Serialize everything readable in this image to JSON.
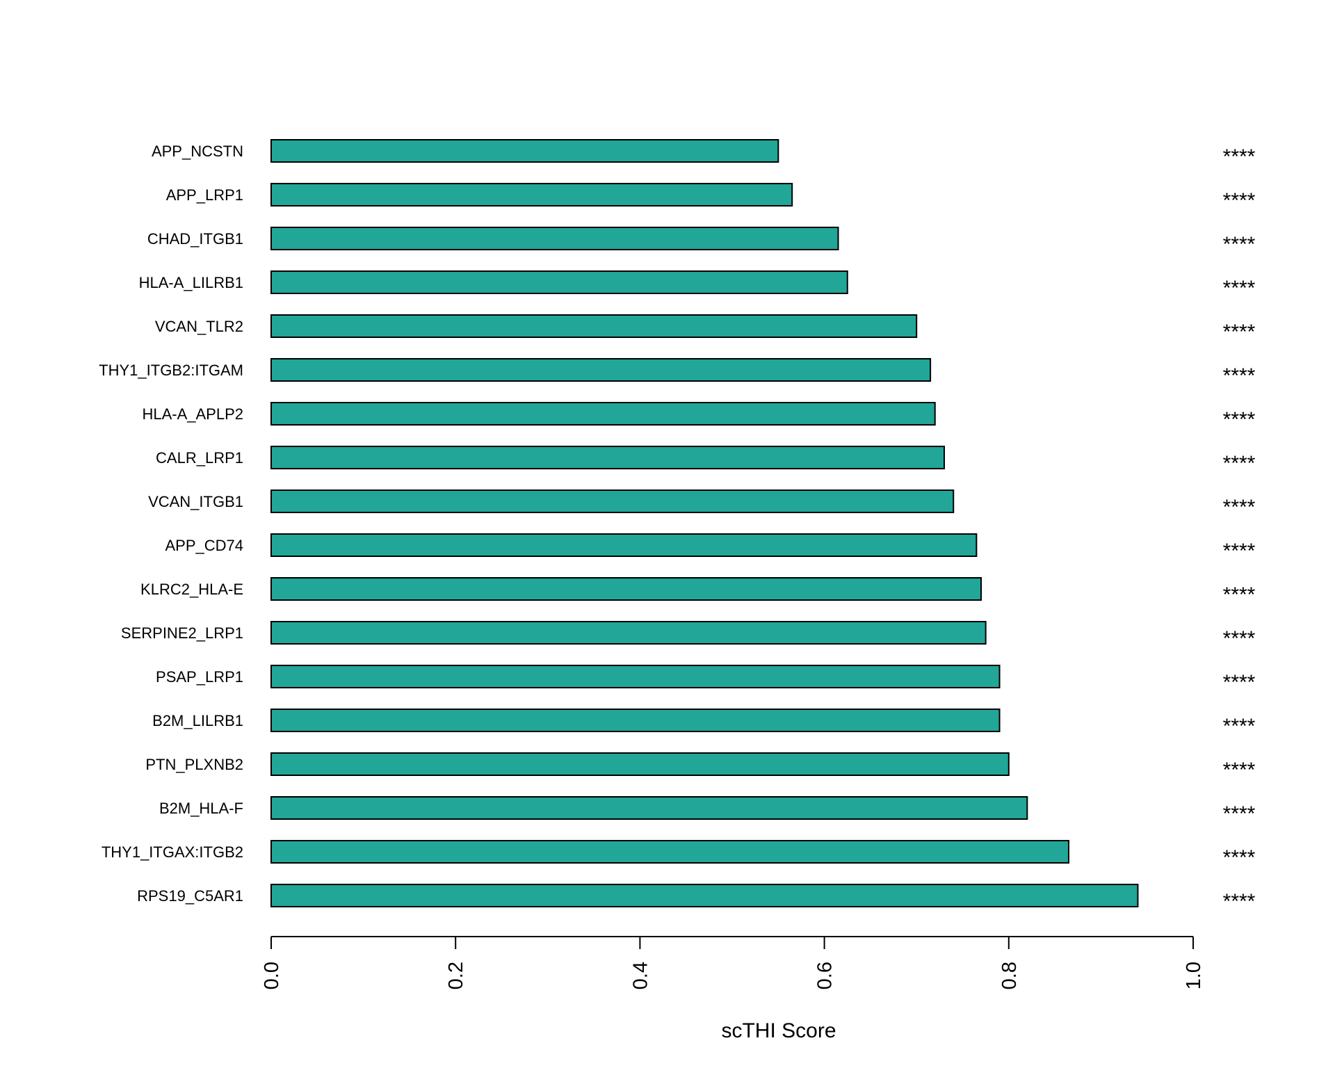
{
  "chart_data": {
    "type": "bar",
    "orientation": "horizontal",
    "title": "",
    "xlabel": "scTHI Score",
    "ylabel": "",
    "xlim": [
      0,
      1
    ],
    "x_ticks": [
      "0.0",
      "0.2",
      "0.4",
      "0.6",
      "0.8",
      "1.0"
    ],
    "x_tick_values": [
      0,
      0.2,
      0.4,
      0.6,
      0.8,
      1.0
    ],
    "grid": false,
    "bar_color": "#21a698",
    "bar_edge_color": "#000000",
    "categories": [
      "APP_NCSTN",
      "APP_LRP1",
      "CHAD_ITGB1",
      "HLA-A_LILRB1",
      "VCAN_TLR2",
      "THY1_ITGB2:ITGAM",
      "HLA-A_APLP2",
      "CALR_LRP1",
      "VCAN_ITGB1",
      "APP_CD74",
      "KLRC2_HLA-E",
      "SERPINE2_LRP1",
      "PSAP_LRP1",
      "B2M_LILRB1",
      "PTN_PLXNB2",
      "B2M_HLA-F",
      "THY1_ITGAX:ITGB2",
      "RPS19_C5AR1"
    ],
    "values": [
      0.55,
      0.565,
      0.615,
      0.625,
      0.7,
      0.715,
      0.72,
      0.73,
      0.74,
      0.765,
      0.77,
      0.775,
      0.79,
      0.79,
      0.8,
      0.82,
      0.865,
      0.94
    ],
    "significance": [
      "****",
      "****",
      "****",
      "****",
      "****",
      "****",
      "****",
      "****",
      "****",
      "****",
      "****",
      "****",
      "****",
      "****",
      "****",
      "****",
      "****",
      "****"
    ]
  }
}
